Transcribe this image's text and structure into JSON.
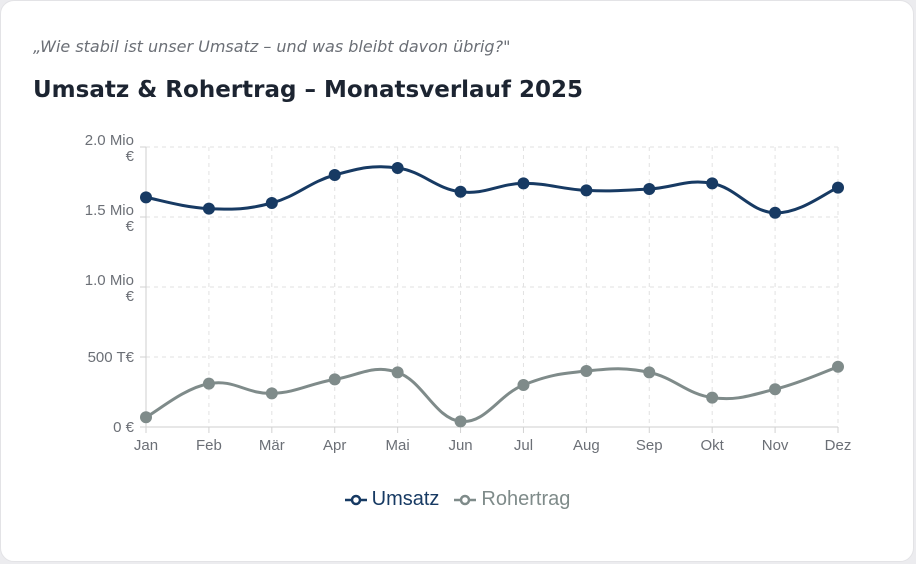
{
  "subtitle": "„Wie stabil ist unser Umsatz – und was bleibt davon übrig?\"",
  "chart_data": {
    "type": "line",
    "title": "Umsatz & Rohertrag – Monatsverlauf 2025",
    "categories": [
      "Jan",
      "Feb",
      "Mär",
      "Apr",
      "Mai",
      "Jun",
      "Jul",
      "Aug",
      "Sep",
      "Okt",
      "Nov",
      "Dez"
    ],
    "yticks": [
      {
        "value": 0,
        "label": [
          "0 €"
        ]
      },
      {
        "value": 500000,
        "label": [
          "500 T€"
        ]
      },
      {
        "value": 1000000,
        "label": [
          "1.0 Mio",
          "€"
        ]
      },
      {
        "value": 1500000,
        "label": [
          "1.5 Mio",
          "€"
        ]
      },
      {
        "value": 2000000,
        "label": [
          "2.0 Mio",
          "€"
        ]
      }
    ],
    "ylim": [
      0,
      2000000
    ],
    "grid": true,
    "legend_position": "bottom-center",
    "series": [
      {
        "name": "Umsatz",
        "color": "#173a63",
        "values": [
          1640000,
          1560000,
          1600000,
          1800000,
          1850000,
          1680000,
          1740000,
          1690000,
          1700000,
          1740000,
          1530000,
          1710000
        ]
      },
      {
        "name": "Rohertrag",
        "color": "#7f8b8a",
        "values": [
          70000,
          310000,
          240000,
          340000,
          390000,
          40000,
          300000,
          400000,
          390000,
          210000,
          270000,
          430000
        ]
      }
    ]
  }
}
